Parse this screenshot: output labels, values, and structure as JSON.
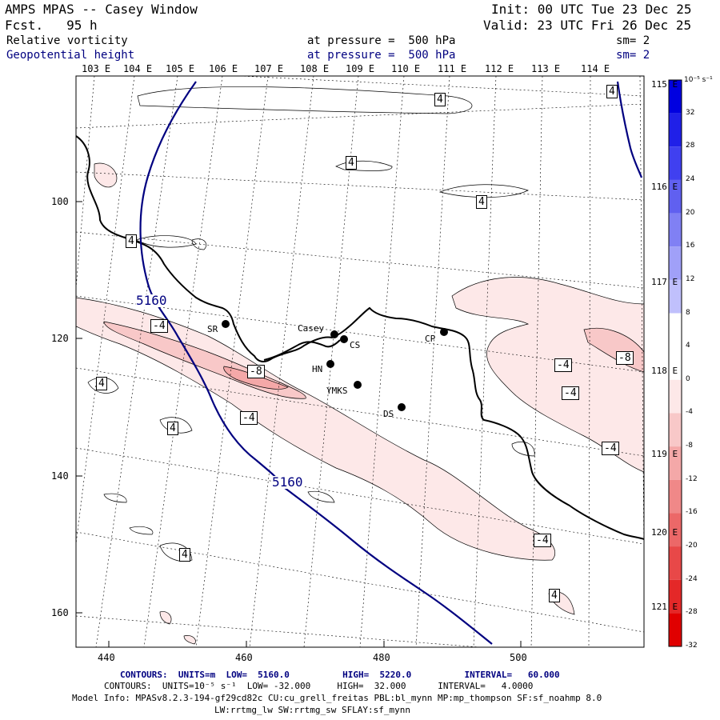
{
  "header": {
    "title": "AMPS MPAS -- Casey Window",
    "forecast": "Fcst.   95 h",
    "init": "Init: 00 UTC Tue 23 Dec 25",
    "valid": "Valid: 23 UTC Fri 26 Dec 25",
    "field1_name": "Relative vorticity",
    "field1_level": "at pressure =  500 hPa",
    "field1_sm": "sm= 2",
    "field2_name": "Geopotential height",
    "field2_level": "at pressure =  500 hPa",
    "field2_sm": "sm= 2"
  },
  "axes": {
    "top_lon_labels": [
      "103 E",
      "104 E",
      "105 E",
      "106 E",
      "107 E",
      "108 E",
      "109 E",
      "110 E",
      "111 E",
      "112 E",
      "113 E",
      "114 E"
    ],
    "right_lon_labels": [
      "115 E",
      "116 E",
      "117 E",
      "118 E",
      "119 E",
      "120 E",
      "121 E"
    ],
    "left_ticks": [
      "100",
      "120",
      "140",
      "160"
    ],
    "bottom_ticks": [
      "440",
      "460",
      "480",
      "500"
    ]
  },
  "colorbar": {
    "unit": "10⁻⁵ s⁻¹",
    "labels": [
      "32",
      "28",
      "24",
      "20",
      "16",
      "12",
      "8",
      "4",
      "0",
      "-4",
      "-8",
      "-12",
      "-16",
      "-20",
      "-24",
      "-28",
      "-32"
    ],
    "colors": [
      "#0000e0",
      "#2020e8",
      "#4040f0",
      "#6060f0",
      "#8080f4",
      "#a0a0f8",
      "#c0c0fc",
      "#ffffff",
      "#ffffff",
      "#fde8e8",
      "#f8c8c8",
      "#f4a8a8",
      "#f08888",
      "#ec6868",
      "#e84848",
      "#e42828",
      "#e00000"
    ]
  },
  "stations": [
    {
      "id": "SR",
      "label": "SR"
    },
    {
      "id": "Casey",
      "label": "Casey"
    },
    {
      "id": "CS",
      "label": "CS"
    },
    {
      "id": "CP",
      "label": "CP"
    },
    {
      "id": "HN",
      "label": "HN"
    },
    {
      "id": "YMKS",
      "label": "YMKS"
    },
    {
      "id": "DS",
      "label": "DS"
    }
  ],
  "height_contour_label": "5160",
  "vort_labels": [
    "4",
    "4",
    "4",
    "4",
    "-4",
    "-8",
    "-4",
    "4",
    "4",
    "4",
    "-4",
    "-4",
    "-4",
    "-8",
    "-4",
    "4",
    "4"
  ],
  "footer": {
    "contours1": "CONTOURS:  UNITS=m  LOW=  5160.0          HIGH=  5220.0          INTERVAL=   60.000",
    "contours2": "CONTOURS:  UNITS=10⁻⁵ s⁻¹  LOW= -32.000     HIGH=  32.000      INTERVAL=   4.0000",
    "model_info": "Model Info: MPASv8.2.3-194-gf29cd82c CU:cu_grell_freitas PBL:bl_mynn MP:mp_thompson SF:sf_noahmp 8.0",
    "model_info2": "LW:rrtmg_lw SW:rrtmg_sw SFLAY:sf_mynn"
  }
}
